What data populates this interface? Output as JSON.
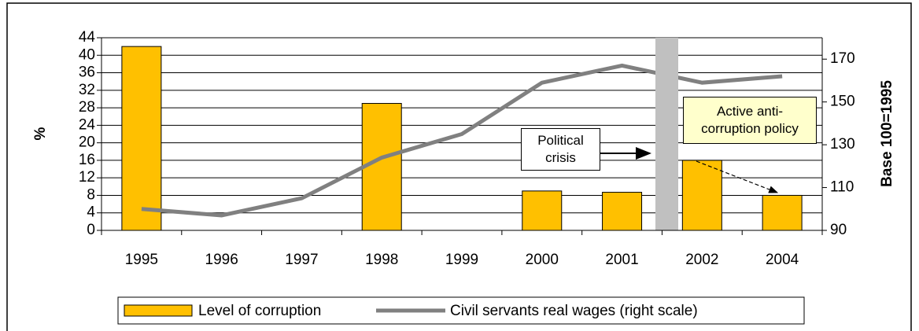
{
  "chart_data": {
    "type": "bar_line",
    "categories": [
      "1995",
      "1996",
      "1997",
      "1998",
      "1999",
      "2000",
      "2001",
      "2002",
      "2004"
    ],
    "series": [
      {
        "name": "Level of corruption",
        "type": "bar",
        "color": "#ffc000",
        "values": [
          42,
          null,
          null,
          29,
          null,
          9,
          8.7,
          16,
          8
        ]
      },
      {
        "name": "Civil servants real wages (right scale)",
        "type": "line",
        "axis": "y2",
        "color": "#808080",
        "values": [
          100,
          97,
          105,
          124,
          135,
          159,
          167,
          159,
          162
        ]
      }
    ],
    "ylabel": "%",
    "y2label": "Base 100=1995",
    "ylim": [
      0,
      44
    ],
    "yticks": [
      0,
      4,
      8,
      12,
      16,
      20,
      24,
      28,
      32,
      36,
      40,
      44
    ],
    "y2lim": [
      90,
      180
    ],
    "y2ticks": [
      90,
      110,
      130,
      150,
      170
    ],
    "grid": true,
    "annotations": [
      "Political crisis",
      "Active anti-corruption policy"
    ],
    "legend": "bottom"
  }
}
